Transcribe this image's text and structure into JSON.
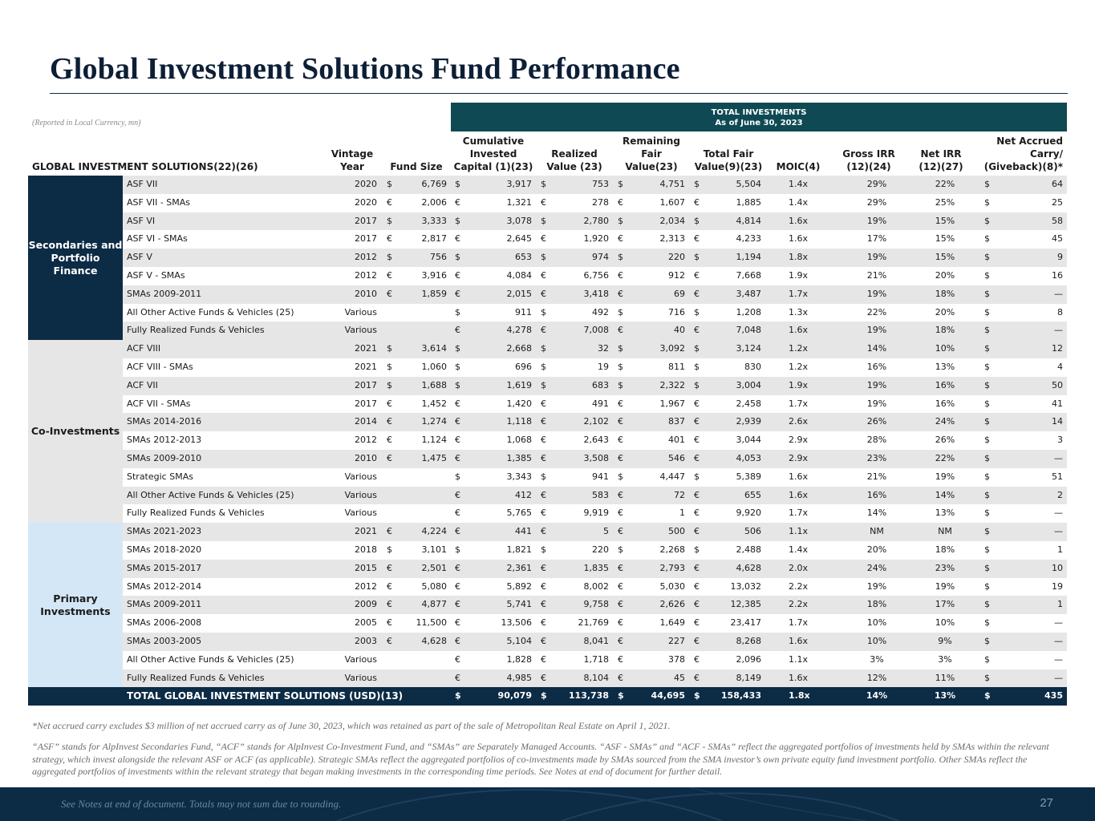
{
  "title": "Global Investment Solutions Fund Performance",
  "reported_note": "(Reported in Local Currency, mn)",
  "total_investments_header": {
    "line1": "TOTAL INVESTMENTS",
    "line2": "As of June 30, 2023"
  },
  "columns": {
    "name": "GLOBAL INVESTMENT SOLUTIONS(22)(26)",
    "vintage": [
      "Vintage",
      "Year"
    ],
    "fund_size": "Fund Size",
    "cum_invested": [
      "Cumulative",
      "Invested",
      "Capital (1)(23)"
    ],
    "realized": [
      "Realized",
      "Value (23)"
    ],
    "remaining": [
      "Remaining",
      "Fair",
      "Value(23)"
    ],
    "total_fv": [
      "Total Fair",
      "Value(9)(23)"
    ],
    "moic": "MOIC(4)",
    "gross_irr": [
      "Gross IRR",
      "(12)(24)"
    ],
    "net_irr": [
      "Net IRR",
      "(12)(27)"
    ],
    "net_carry": [
      "Net Accrued",
      "Carry/",
      "(Giveback)(8)*"
    ]
  },
  "groups": [
    {
      "label": [
        "Secondaries and",
        "Portfolio Finance"
      ],
      "rows": [
        {
          "name": "ASF VII",
          "vintage": "2020",
          "fs_cur": "$",
          "fund_size": "6,769",
          "cur": "$",
          "invested": "3,917",
          "realized": "753",
          "remaining": "4,751",
          "total": "5,504",
          "moic": "1.4x",
          "gross": "29%",
          "net": "22%",
          "carry": "64"
        },
        {
          "name": "ASF VII - SMAs",
          "vintage": "2020",
          "fs_cur": "€",
          "fund_size": "2,006",
          "cur": "€",
          "invested": "1,321",
          "realized": "278",
          "remaining": "1,607",
          "total": "1,885",
          "moic": "1.4x",
          "gross": "29%",
          "net": "25%",
          "carry": "25"
        },
        {
          "name": "ASF VI",
          "vintage": "2017",
          "fs_cur": "$",
          "fund_size": "3,333",
          "cur": "$",
          "invested": "3,078",
          "realized": "2,780",
          "remaining": "2,034",
          "total": "4,814",
          "moic": "1.6x",
          "gross": "19%",
          "net": "15%",
          "carry": "58"
        },
        {
          "name": "ASF VI - SMAs",
          "vintage": "2017",
          "fs_cur": "€",
          "fund_size": "2,817",
          "cur": "€",
          "invested": "2,645",
          "realized": "1,920",
          "remaining": "2,313",
          "total": "4,233",
          "moic": "1.6x",
          "gross": "17%",
          "net": "15%",
          "carry": "45"
        },
        {
          "name": "ASF V",
          "vintage": "2012",
          "fs_cur": "$",
          "fund_size": "756",
          "cur": "$",
          "invested": "653",
          "realized": "974",
          "remaining": "220",
          "total": "1,194",
          "moic": "1.8x",
          "gross": "19%",
          "net": "15%",
          "carry": "9"
        },
        {
          "name": "ASF V - SMAs",
          "vintage": "2012",
          "fs_cur": "€",
          "fund_size": "3,916",
          "cur": "€",
          "invested": "4,084",
          "realized": "6,756",
          "remaining": "912",
          "total": "7,668",
          "moic": "1.9x",
          "gross": "21%",
          "net": "20%",
          "carry": "16"
        },
        {
          "name": "SMAs 2009-2011",
          "vintage": "2010",
          "fs_cur": "€",
          "fund_size": "1,859",
          "cur": "€",
          "invested": "2,015",
          "realized": "3,418",
          "remaining": "69",
          "total": "3,487",
          "moic": "1.7x",
          "gross": "19%",
          "net": "18%",
          "carry": "—"
        },
        {
          "name": "All Other Active Funds & Vehicles (25)",
          "vintage": "Various",
          "fs_cur": "",
          "fund_size": "",
          "cur": "$",
          "invested": "911",
          "realized": "492",
          "remaining": "716",
          "total": "1,208",
          "moic": "1.3x",
          "gross": "22%",
          "net": "20%",
          "carry": "8"
        },
        {
          "name": "Fully Realized Funds & Vehicles",
          "vintage": "Various",
          "fs_cur": "",
          "fund_size": "",
          "cur": "€",
          "invested": "4,278",
          "realized": "7,008",
          "remaining": "40",
          "total": "7,048",
          "moic": "1.6x",
          "gross": "19%",
          "net": "18%",
          "carry": "—"
        }
      ]
    },
    {
      "label": [
        "Co-Investments"
      ],
      "rows": [
        {
          "name": "ACF VIII",
          "vintage": "2021",
          "fs_cur": "$",
          "fund_size": "3,614",
          "cur": "$",
          "invested": "2,668",
          "realized": "32",
          "remaining": "3,092",
          "total": "3,124",
          "moic": "1.2x",
          "gross": "14%",
          "net": "10%",
          "carry": "12"
        },
        {
          "name": "ACF VIII -  SMAs",
          "vintage": "2021",
          "fs_cur": "$",
          "fund_size": "1,060",
          "cur": "$",
          "invested": "696",
          "realized": "19",
          "remaining": "811",
          "total": "830",
          "moic": "1.2x",
          "gross": "16%",
          "net": "13%",
          "carry": "4"
        },
        {
          "name": "ACF VII",
          "vintage": "2017",
          "fs_cur": "$",
          "fund_size": "1,688",
          "cur": "$",
          "invested": "1,619",
          "realized": "683",
          "remaining": "2,322",
          "total": "3,004",
          "moic": "1.9x",
          "gross": "19%",
          "net": "16%",
          "carry": "50"
        },
        {
          "name": "ACF VII - SMAs",
          "vintage": "2017",
          "fs_cur": "€",
          "fund_size": "1,452",
          "cur": "€",
          "invested": "1,420",
          "realized": "491",
          "remaining": "1,967",
          "total": "2,458",
          "moic": "1.7x",
          "gross": "19%",
          "net": "16%",
          "carry": "41"
        },
        {
          "name": "SMAs 2014-2016",
          "vintage": "2014",
          "fs_cur": "€",
          "fund_size": "1,274",
          "cur": "€",
          "invested": "1,118",
          "realized": "2,102",
          "remaining": "837",
          "total": "2,939",
          "moic": "2.6x",
          "gross": "26%",
          "net": "24%",
          "carry": "14"
        },
        {
          "name": "SMAs 2012-2013",
          "vintage": "2012",
          "fs_cur": "€",
          "fund_size": "1,124",
          "cur": "€",
          "invested": "1,068",
          "realized": "2,643",
          "remaining": "401",
          "total": "3,044",
          "moic": "2.9x",
          "gross": "28%",
          "net": "26%",
          "carry": "3"
        },
        {
          "name": "SMAs 2009-2010",
          "vintage": "2010",
          "fs_cur": "€",
          "fund_size": "1,475",
          "cur": "€",
          "invested": "1,385",
          "realized": "3,508",
          "remaining": "546",
          "total": "4,053",
          "moic": "2.9x",
          "gross": "23%",
          "net": "22%",
          "carry": "—"
        },
        {
          "name": "Strategic SMAs",
          "vintage": "Various",
          "fs_cur": "",
          "fund_size": "",
          "cur": "$",
          "invested": "3,343",
          "realized": "941",
          "remaining": "4,447",
          "total": "5,389",
          "moic": "1.6x",
          "gross": "21%",
          "net": "19%",
          "carry": "51"
        },
        {
          "name": "All Other Active Funds & Vehicles (25)",
          "vintage": "Various",
          "fs_cur": "",
          "fund_size": "",
          "cur": "€",
          "invested": "412",
          "realized": "583",
          "remaining": "72",
          "total": "655",
          "moic": "1.6x",
          "gross": "16%",
          "net": "14%",
          "carry": "2"
        },
        {
          "name": "Fully Realized Funds & Vehicles",
          "vintage": "Various",
          "fs_cur": "",
          "fund_size": "",
          "cur": "€",
          "invested": "5,765",
          "realized": "9,919",
          "remaining": "1",
          "total": "9,920",
          "moic": "1.7x",
          "gross": "14%",
          "net": "13%",
          "carry": "—"
        }
      ]
    },
    {
      "label": [
        "Primary",
        "Investments"
      ],
      "rows": [
        {
          "name": "SMAs 2021-2023",
          "vintage": "2021",
          "fs_cur": "€",
          "fund_size": "4,224",
          "cur": "€",
          "invested": "441",
          "realized": "5",
          "remaining": "500",
          "total": "506",
          "moic": "1.1x",
          "gross": "NM",
          "net": "NM",
          "carry": "—"
        },
        {
          "name": "SMAs 2018-2020",
          "vintage": "2018",
          "fs_cur": "$",
          "fund_size": "3,101",
          "cur": "$",
          "invested": "1,821",
          "realized": "220",
          "remaining": "2,268",
          "total": "2,488",
          "moic": "1.4x",
          "gross": "20%",
          "net": "18%",
          "carry": "1"
        },
        {
          "name": "SMAs 2015-2017",
          "vintage": "2015",
          "fs_cur": "€",
          "fund_size": "2,501",
          "cur": "€",
          "invested": "2,361",
          "realized": "1,835",
          "remaining": "2,793",
          "total": "4,628",
          "moic": "2.0x",
          "gross": "24%",
          "net": "23%",
          "carry": "10"
        },
        {
          "name": "SMAs 2012-2014",
          "vintage": "2012",
          "fs_cur": "€",
          "fund_size": "5,080",
          "cur": "€",
          "invested": "5,892",
          "realized": "8,002",
          "remaining": "5,030",
          "total": "13,032",
          "moic": "2.2x",
          "gross": "19%",
          "net": "19%",
          "carry": "19"
        },
        {
          "name": "SMAs 2009-2011",
          "vintage": "2009",
          "fs_cur": "€",
          "fund_size": "4,877",
          "cur": "€",
          "invested": "5,741",
          "realized": "9,758",
          "remaining": "2,626",
          "total": "12,385",
          "moic": "2.2x",
          "gross": "18%",
          "net": "17%",
          "carry": "1"
        },
        {
          "name": "SMAs 2006-2008",
          "vintage": "2005",
          "fs_cur": "€",
          "fund_size": "11,500",
          "cur": "€",
          "invested": "13,506",
          "realized": "21,769",
          "remaining": "1,649",
          "total": "23,417",
          "moic": "1.7x",
          "gross": "10%",
          "net": "10%",
          "carry": "—"
        },
        {
          "name": "SMAs 2003-2005",
          "vintage": "2003",
          "fs_cur": "€",
          "fund_size": "4,628",
          "cur": "€",
          "invested": "5,104",
          "realized": "8,041",
          "remaining": "227",
          "total": "8,268",
          "moic": "1.6x",
          "gross": "10%",
          "net": "9%",
          "carry": "—"
        },
        {
          "name": "All Other Active Funds & Vehicles (25)",
          "vintage": "Various",
          "fs_cur": "",
          "fund_size": "",
          "cur": "€",
          "invested": "1,828",
          "realized": "1,718",
          "remaining": "378",
          "total": "2,096",
          "moic": "1.1x",
          "gross": "3%",
          "net": "3%",
          "carry": "—"
        },
        {
          "name": "Fully Realized Funds & Vehicles",
          "vintage": "Various",
          "fs_cur": "",
          "fund_size": "",
          "cur": "€",
          "invested": "4,985",
          "realized": "8,104",
          "remaining": "45",
          "total": "8,149",
          "moic": "1.6x",
          "gross": "12%",
          "net": "11%",
          "carry": "—"
        }
      ]
    }
  ],
  "total_row": {
    "name": "TOTAL GLOBAL INVESTMENT SOLUTIONS (USD)(13)",
    "cur": "$",
    "invested": "90,079",
    "realized": "113,738",
    "remaining": "44,695",
    "total": "158,433",
    "moic": "1.8x",
    "gross": "14%",
    "net": "13%",
    "carry": "435"
  },
  "notes": {
    "carry_note": "*Net accrued carry excludes $3 million of net accrued carry as of June 30, 2023, which was retained as part of the sale of Metropolitan Real Estate on April 1, 2021.",
    "definitions": "“ASF” stands for AlpInvest Secondaries Fund, “ACF” stands for AlpInvest Co-Investment Fund, and “SMAs” are Separately Managed Accounts. “ASF - SMAs” and “ACF - SMAs” reflect the aggregated portfolios of investments held by SMAs within the relevant strategy, which invest alongside the relevant ASF or ACF (as applicable). Strategic SMAs reflect the aggregated portfolios of co-investments made by SMAs sourced from the SMA investor’s own private equity fund investment portfolio. Other SMAs reflect the aggregated portfolios of investments within the relevant strategy that began making investments in the corresponding time periods. See Notes at end of document for further detail."
  },
  "footer": {
    "text": "See Notes at end of document. Totals may not sum due to rounding.",
    "page": "27"
  }
}
